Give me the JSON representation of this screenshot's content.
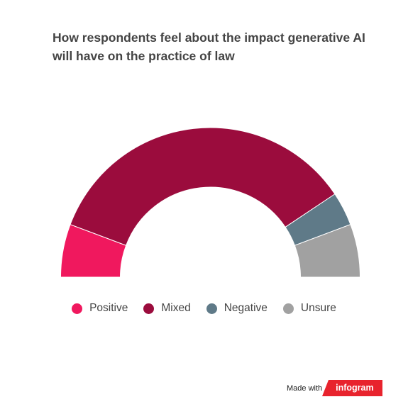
{
  "title": {
    "line1": "How respondents feel about the impact generative AI",
    "line2": "will have on the practice of law"
  },
  "chart_data": {
    "type": "pie",
    "variant": "semicircle-donut",
    "title": "How respondents feel about the impact generative AI will have on the practice of law",
    "categories": [
      "Positive",
      "Mixed",
      "Negative",
      "Unsure"
    ],
    "values": [
      11,
      67,
      7,
      11
    ],
    "unit": "%",
    "colors": [
      "#f0185e",
      "#9b0c3d",
      "#5f7a88",
      "#a1a1a1"
    ],
    "legend_placement": "bottom"
  },
  "legend": {
    "items": [
      {
        "label": "Positive",
        "color": "#f0185e"
      },
      {
        "label": "Mixed",
        "color": "#9b0c3d"
      },
      {
        "label": "Negative",
        "color": "#5f7a88"
      },
      {
        "label": "Unsure",
        "color": "#a1a1a1"
      }
    ]
  },
  "footer": {
    "made_with": "Made with",
    "brand": "infogram"
  }
}
